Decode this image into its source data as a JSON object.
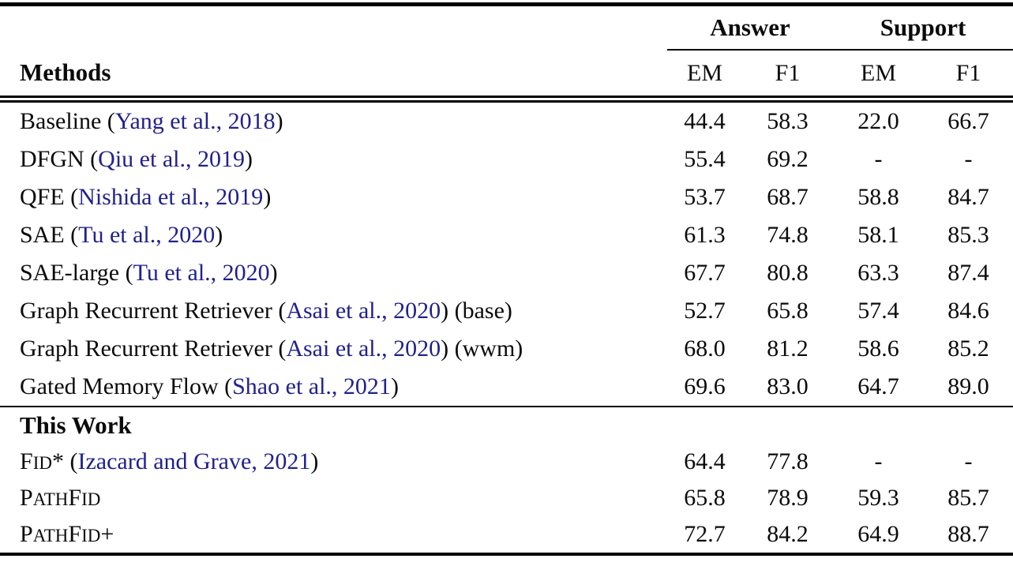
{
  "colors": {
    "citation_link": "#21218C",
    "text": "#0b0b0b",
    "rule": "#000000"
  },
  "table": {
    "col_groups": [
      {
        "label": "Answer"
      },
      {
        "label": "Support"
      }
    ],
    "method_header": "Methods",
    "sub_headers": [
      "EM",
      "F1",
      "EM",
      "F1"
    ],
    "sections": [
      {
        "label": null,
        "rows": [
          {
            "method": [
              {
                "t": "Baseline (",
                "c": "text"
              },
              {
                "t": "Yang et al., 2018",
                "c": "cite"
              },
              {
                "t": ")",
                "c": "text"
              }
            ],
            "values": [
              "44.4",
              "58.3",
              "22.0",
              "66.7"
            ]
          },
          {
            "method": [
              {
                "t": "DFGN (",
                "c": "text"
              },
              {
                "t": "Qiu et al., 2019",
                "c": "cite"
              },
              {
                "t": ")",
                "c": "text"
              }
            ],
            "values": [
              "55.4",
              "69.2",
              "-",
              "-"
            ]
          },
          {
            "method": [
              {
                "t": "QFE (",
                "c": "text"
              },
              {
                "t": "Nishida et al., 2019",
                "c": "cite"
              },
              {
                "t": ")",
                "c": "text"
              }
            ],
            "values": [
              "53.7",
              "68.7",
              "58.8",
              "84.7"
            ]
          },
          {
            "method": [
              {
                "t": "SAE (",
                "c": "text"
              },
              {
                "t": "Tu et al., 2020",
                "c": "cite"
              },
              {
                "t": ")",
                "c": "text"
              }
            ],
            "values": [
              "61.3",
              "74.8",
              "58.1",
              "85.3"
            ]
          },
          {
            "method": [
              {
                "t": "SAE-large (",
                "c": "text"
              },
              {
                "t": "Tu et al., 2020",
                "c": "cite"
              },
              {
                "t": ")",
                "c": "text"
              }
            ],
            "values": [
              "67.7",
              "80.8",
              "63.3",
              "87.4"
            ]
          },
          {
            "method": [
              {
                "t": "Graph Recurrent Retriever (",
                "c": "text"
              },
              {
                "t": "Asai et al., 2020",
                "c": "cite"
              },
              {
                "t": ") (base)",
                "c": "text"
              }
            ],
            "values": [
              "52.7",
              "65.8",
              "57.4",
              "84.6"
            ]
          },
          {
            "method": [
              {
                "t": "Graph Recurrent Retriever (",
                "c": "text"
              },
              {
                "t": "Asai et al., 2020",
                "c": "cite"
              },
              {
                "t": ") (wwm)",
                "c": "text"
              }
            ],
            "values": [
              "68.0",
              "81.2",
              "58.6",
              "85.2"
            ]
          },
          {
            "method": [
              {
                "t": "Gated Memory Flow (",
                "c": "text"
              },
              {
                "t": "Shao et al., 2021",
                "c": "cite"
              },
              {
                "t": ")",
                "c": "text"
              }
            ],
            "values": [
              "69.6",
              "83.0",
              "64.7",
              "89.0"
            ]
          }
        ]
      },
      {
        "label": "This Work",
        "rows": [
          {
            "method": [
              {
                "t": "F",
                "c": "text"
              },
              {
                "t": "ID",
                "c": "sc"
              },
              {
                "t": "* (",
                "c": "text"
              },
              {
                "t": "Izacard and Grave, 2021",
                "c": "cite"
              },
              {
                "t": ")",
                "c": "text"
              }
            ],
            "values": [
              "64.4",
              "77.8",
              "-",
              "-"
            ]
          },
          {
            "method": [
              {
                "t": "P",
                "c": "text"
              },
              {
                "t": "ATH",
                "c": "sc"
              },
              {
                "t": "F",
                "c": "text"
              },
              {
                "t": "ID",
                "c": "sc"
              }
            ],
            "values": [
              "65.8",
              "78.9",
              "59.3",
              "85.7"
            ]
          },
          {
            "method": [
              {
                "t": "P",
                "c": "text"
              },
              {
                "t": "ATH",
                "c": "sc"
              },
              {
                "t": "F",
                "c": "text"
              },
              {
                "t": "ID",
                "c": "sc"
              },
              {
                "t": "+",
                "c": "text"
              }
            ],
            "values": [
              "72.7",
              "84.2",
              "64.9",
              "88.7"
            ]
          }
        ]
      }
    ]
  }
}
